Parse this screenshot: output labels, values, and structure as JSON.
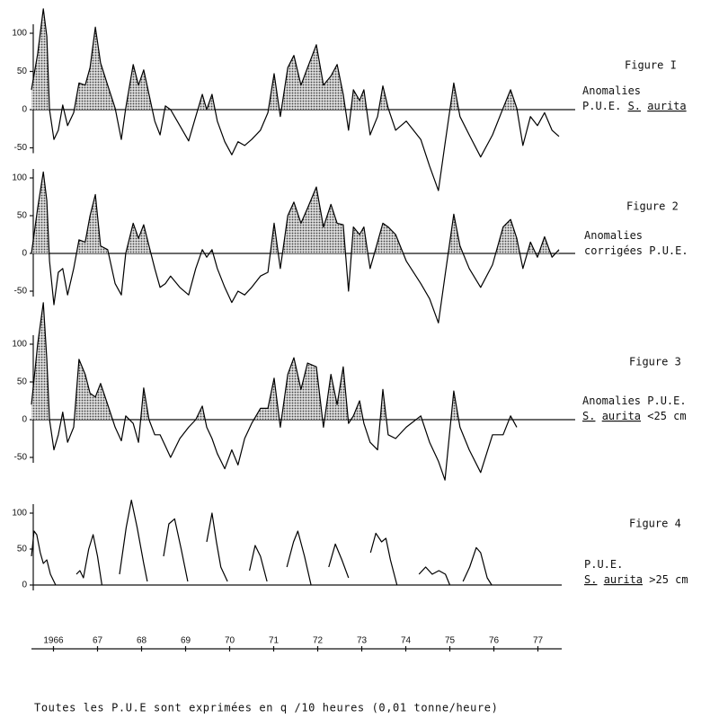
{
  "chart_data": [
    {
      "type": "line",
      "title": "Figure I",
      "description": [
        [
          {
            "text": "Anomalies"
          }
        ],
        [
          {
            "text": "P.U.E. "
          },
          {
            "text": "S.",
            "underline": true
          },
          {
            "text": " "
          },
          {
            "text": "aurita",
            "underline": true
          }
        ]
      ],
      "x": [
        1966.0,
        1966.14,
        1966.27,
        1966.35,
        1966.41,
        1966.51,
        1966.61,
        1966.71,
        1966.82,
        1966.96,
        1967.08,
        1967.22,
        1967.33,
        1967.45,
        1967.57,
        1967.73,
        1967.9,
        1968.04,
        1968.14,
        1968.31,
        1968.43,
        1968.55,
        1968.67,
        1968.8,
        1968.92,
        1969.04,
        1969.16,
        1969.37,
        1969.57,
        1969.73,
        1969.88,
        1969.98,
        1970.1,
        1970.22,
        1970.39,
        1970.55,
        1970.69,
        1970.84,
        1971.0,
        1971.2,
        1971.37,
        1971.51,
        1971.65,
        1971.82,
        1971.96,
        1972.12,
        1972.27,
        1972.47,
        1972.63,
        1972.8,
        1972.94,
        1973.08,
        1973.2,
        1973.31,
        1973.45,
        1973.55,
        1973.69,
        1973.86,
        1973.98,
        1974.1,
        1974.27,
        1974.51,
        1974.84,
        1975.04,
        1975.24,
        1975.39,
        1975.59,
        1975.73,
        1975.94,
        1976.2,
        1976.47,
        1976.71,
        1976.88,
        1977.02,
        1977.16,
        1977.33,
        1977.49,
        1977.65,
        1977.82,
        1977.98
      ],
      "series": [
        {
          "color": "#000000",
          "values": [
            26,
            73,
            132,
            96,
            0,
            -39,
            -27,
            6,
            -21,
            -4,
            35,
            32,
            55,
            108,
            61,
            32,
            2,
            -39,
            2,
            59,
            32,
            52,
            20,
            -15,
            -33,
            5,
            0,
            -21,
            -41,
            -9,
            20,
            0,
            20,
            -15,
            -42,
            -59,
            -42,
            -47,
            -39,
            -27,
            -4,
            47,
            -9,
            55,
            71,
            32,
            55,
            85,
            32,
            44,
            59,
            20,
            -27,
            26,
            12,
            26,
            -33,
            -9,
            31,
            2,
            -27,
            -15,
            -39,
            -74,
            -106,
            -45,
            35,
            -9,
            -33,
            -62,
            -33,
            2,
            26,
            2,
            -47,
            -9,
            -21,
            -4,
            -27,
            -35
          ]
        }
      ],
      "xlim": [
        1966,
        1978
      ],
      "ylim": [
        -110,
        135
      ],
      "yticks": [
        -50,
        0,
        50,
        100
      ],
      "fill_positive": true,
      "fill_color": "#444444"
    },
    {
      "type": "line",
      "title": "Figure 2",
      "description": [
        [
          {
            "text": "Anomalies"
          }
        ],
        [
          {
            "text": "corrigées P.U.E."
          }
        ]
      ],
      "x": [
        1966.0,
        1966.14,
        1966.27,
        1966.35,
        1966.41,
        1966.51,
        1966.61,
        1966.71,
        1966.82,
        1966.96,
        1967.08,
        1967.22,
        1967.33,
        1967.45,
        1967.57,
        1967.73,
        1967.9,
        1968.04,
        1968.14,
        1968.31,
        1968.43,
        1968.55,
        1968.67,
        1968.8,
        1968.92,
        1969.04,
        1969.16,
        1969.37,
        1969.57,
        1969.73,
        1969.88,
        1969.98,
        1970.1,
        1970.22,
        1970.39,
        1970.55,
        1970.69,
        1970.84,
        1971.0,
        1971.2,
        1971.37,
        1971.51,
        1971.65,
        1971.82,
        1971.96,
        1972.12,
        1972.27,
        1972.47,
        1972.63,
        1972.8,
        1972.94,
        1973.08,
        1973.2,
        1973.31,
        1973.45,
        1973.55,
        1973.69,
        1973.86,
        1973.98,
        1974.1,
        1974.27,
        1974.51,
        1974.84,
        1975.04,
        1975.24,
        1975.39,
        1975.59,
        1975.73,
        1975.94,
        1976.2,
        1976.47,
        1976.71,
        1976.88,
        1977.02,
        1977.16,
        1977.33,
        1977.49,
        1977.65,
        1977.82,
        1977.98
      ],
      "series": [
        {
          "color": "#000000",
          "values": [
            0,
            60,
            108,
            70,
            -10,
            -68,
            -25,
            -20,
            -55,
            -20,
            18,
            15,
            50,
            78,
            10,
            5,
            -40,
            -55,
            0,
            40,
            20,
            38,
            10,
            -20,
            -45,
            -40,
            -30,
            -45,
            -55,
            -20,
            5,
            -5,
            5,
            -20,
            -45,
            -65,
            -50,
            -55,
            -45,
            -30,
            -25,
            40,
            -20,
            50,
            68,
            40,
            60,
            88,
            35,
            65,
            40,
            38,
            -50,
            35,
            25,
            35,
            -20,
            15,
            40,
            35,
            25,
            -10,
            -40,
            -60,
            -92,
            -30,
            52,
            10,
            -20,
            -45,
            -15,
            35,
            45,
            20,
            -20,
            15,
            -5,
            22,
            -5,
            5
          ]
        }
      ],
      "xlim": [
        1966,
        1978
      ],
      "ylim": [
        -105,
        115
      ],
      "yticks": [
        -50,
        0,
        50,
        100
      ],
      "fill_positive": true,
      "fill_color": "#444444"
    },
    {
      "type": "line",
      "title": "Figure 3",
      "description": [
        [
          {
            "text": "Anomalies P.U.E."
          }
        ],
        [
          {
            "text": "S.",
            "underline": true
          },
          {
            "text": " "
          },
          {
            "text": "aurita",
            "underline": true
          },
          {
            "text": " <25 cm"
          }
        ]
      ],
      "x": [
        1966.0,
        1966.14,
        1966.27,
        1966.35,
        1966.41,
        1966.51,
        1966.61,
        1966.71,
        1966.82,
        1966.96,
        1967.08,
        1967.22,
        1967.33,
        1967.45,
        1967.57,
        1967.73,
        1967.9,
        1968.04,
        1968.14,
        1968.31,
        1968.43,
        1968.55,
        1968.67,
        1968.8,
        1968.92,
        1969.04,
        1969.16,
        1969.37,
        1969.57,
        1969.73,
        1969.88,
        1969.98,
        1970.1,
        1970.22,
        1970.39,
        1970.55,
        1970.69,
        1970.84,
        1971.0,
        1971.2,
        1971.37,
        1971.51,
        1971.65,
        1971.82,
        1971.96,
        1972.12,
        1972.27,
        1972.47,
        1972.63,
        1972.8,
        1972.94,
        1973.08,
        1973.2,
        1973.31,
        1973.45,
        1973.55,
        1973.69,
        1973.86,
        1973.98,
        1974.1,
        1974.27,
        1974.51,
        1974.84,
        1975.04,
        1975.24,
        1975.39,
        1975.59,
        1975.73,
        1975.94,
        1976.2,
        1976.47,
        1976.71,
        1976.88,
        1977.02,
        1977.16,
        1977.33,
        1977.49,
        1977.65,
        1977.82,
        1977.98
      ],
      "series": [
        {
          "color": "#000000",
          "values": [
            20,
            100,
            155,
            80,
            0,
            -40,
            -20,
            10,
            -30,
            -10,
            80,
            60,
            35,
            30,
            48,
            20,
            -10,
            -28,
            5,
            -5,
            -30,
            42,
            0,
            -20,
            -20,
            -35,
            -50,
            -25,
            -10,
            0,
            18,
            -10,
            -25,
            -45,
            -65,
            -40,
            -60,
            -25,
            -5,
            15,
            15,
            55,
            -10,
            60,
            82,
            40,
            75,
            70,
            -10,
            60,
            20,
            70,
            -5,
            5,
            25,
            -5,
            -30,
            -40,
            40,
            -20,
            -25,
            -10,
            5,
            -30,
            -55,
            -80,
            38,
            -10,
            -40,
            -70,
            -20,
            -20,
            5,
            -10,
            null,
            null,
            null,
            null,
            null,
            null
          ]
        }
      ],
      "xlim": [
        1966,
        1978
      ],
      "ylim": [
        -90,
        160
      ],
      "yticks": [
        -50,
        0,
        50,
        100
      ],
      "fill_positive": true,
      "fill_color": "#444444"
    },
    {
      "type": "line",
      "title": "Figure 4",
      "description": [
        [
          {
            "text": "P.U.E."
          }
        ],
        [
          {
            "text": "S.",
            "underline": true
          },
          {
            "text": " "
          },
          {
            "text": "aurita",
            "underline": true
          },
          {
            "text": " >25 cm"
          }
        ]
      ],
      "x": [
        1966.0,
        1966.06,
        1966.12,
        1966.2,
        1966.27,
        1966.35,
        1966.43,
        1966.55,
        1966.8,
        1967.02,
        1967.1,
        1967.18,
        1967.3,
        1967.4,
        1967.5,
        1967.6,
        1967.8,
        1968.0,
        1968.15,
        1968.27,
        1968.4,
        1968.55,
        1968.63,
        1968.8,
        1969.0,
        1969.12,
        1969.25,
        1969.4,
        1969.55,
        1969.8,
        1969.98,
        1970.1,
        1970.2,
        1970.3,
        1970.45,
        1970.7,
        1970.95,
        1971.08,
        1971.2,
        1971.35,
        1971.6,
        1971.8,
        1971.95,
        1972.05,
        1972.2,
        1972.35,
        1972.55,
        1972.75,
        1972.9,
        1973.05,
        1973.2,
        1973.45,
        1973.7,
        1973.82,
        1973.95,
        1974.05,
        1974.15,
        1974.3,
        1974.55,
        1974.8,
        1974.95,
        1975.1,
        1975.25,
        1975.4,
        1975.5,
        1975.65,
        1975.8,
        1975.95,
        1976.1,
        1976.2,
        1976.35,
        1976.45
      ],
      "series": [
        {
          "color": "#000000",
          "values": [
            40,
            75,
            70,
            45,
            30,
            35,
            15,
            0,
            null,
            15,
            20,
            10,
            50,
            70,
            40,
            0,
            null,
            15,
            80,
            118,
            80,
            30,
            5,
            null,
            40,
            85,
            92,
            50,
            5,
            null,
            60,
            100,
            60,
            25,
            5,
            null,
            20,
            55,
            40,
            5,
            null,
            25,
            60,
            75,
            40,
            0,
            null,
            25,
            57,
            35,
            10,
            null,
            45,
            72,
            60,
            65,
            35,
            0,
            null,
            15,
            25,
            15,
            20,
            15,
            0,
            null,
            5,
            25,
            52,
            45,
            10,
            0
          ]
        }
      ],
      "xlim": [
        1966,
        1978
      ],
      "ylim": [
        0,
        125
      ],
      "yticks": [
        0,
        50,
        100
      ],
      "xticks": [
        {
          "value": 1966.5,
          "label": "1966"
        },
        {
          "value": 1967.5,
          "label": "67"
        },
        {
          "value": 1968.5,
          "label": "68"
        },
        {
          "value": 1969.5,
          "label": "69"
        },
        {
          "value": 1970.5,
          "label": "70"
        },
        {
          "value": 1971.5,
          "label": "71"
        },
        {
          "value": 1972.5,
          "label": "72"
        },
        {
          "value": 1973.5,
          "label": "73"
        },
        {
          "value": 1974.5,
          "label": "74"
        },
        {
          "value": 1975.5,
          "label": "75"
        },
        {
          "value": 1976.5,
          "label": "76"
        },
        {
          "value": 1977.5,
          "label": "77"
        }
      ],
      "fill_positive": false,
      "fill_color": "#444444"
    }
  ],
  "footnote": "Toutes les P.U.E sont exprimées en q /10 heures (0,01 tonne/heure)"
}
